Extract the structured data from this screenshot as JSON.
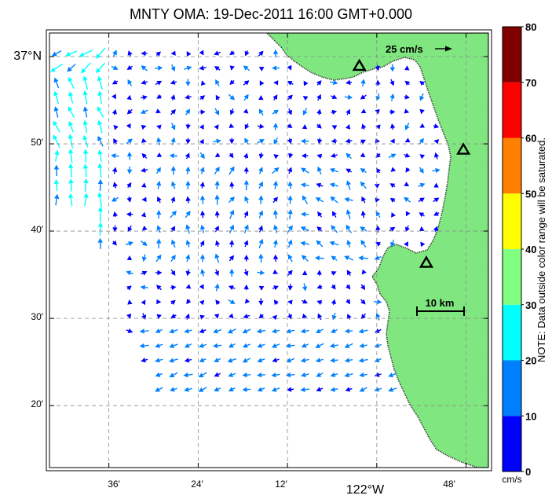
{
  "chart_data": {
    "type": "vector-field",
    "title": "MNTY OMA: 19-Dec-2011 16:00 GMT+0.000",
    "x_axis": {
      "ticks": [
        {
          "label": "36′",
          "lon": -122.6
        },
        {
          "label": "24′",
          "lon": -122.4
        },
        {
          "label": "12′",
          "lon": -122.2
        },
        {
          "label": "122°W",
          "lon": -122.0,
          "major": true
        },
        {
          "label": "48′",
          "lon": -121.8
        }
      ],
      "range_lon": [
        -122.733,
        -121.75
      ]
    },
    "y_axis": {
      "ticks": [
        {
          "label": "37°N",
          "lat": 37.0,
          "major": true
        },
        {
          "label": "50′",
          "lat": 36.8333
        },
        {
          "label": "40′",
          "lat": 36.6667
        },
        {
          "label": "30′",
          "lat": 36.5
        },
        {
          "label": "20′",
          "lat": 36.3333
        }
      ],
      "range_lat": [
        36.215,
        37.045
      ]
    },
    "grid": true,
    "colorbar": {
      "unit": "cm/s",
      "ticks": [
        "0",
        "10",
        "20",
        "30",
        "40",
        "50",
        "60",
        "70",
        "80"
      ],
      "bins": [
        {
          "from": 0,
          "to": 10,
          "color": "#0000ff"
        },
        {
          "from": 10,
          "to": 20,
          "color": "#0080ff"
        },
        {
          "from": 20,
          "to": 30,
          "color": "#00ffff"
        },
        {
          "from": 30,
          "to": 40,
          "color": "#80ff80"
        },
        {
          "from": 40,
          "to": 50,
          "color": "#ffff00"
        },
        {
          "from": 50,
          "to": 60,
          "color": "#ff8000"
        },
        {
          "from": 60,
          "to": 70,
          "color": "#ff0000"
        },
        {
          "from": 70,
          "to": 80,
          "color": "#800000"
        }
      ],
      "note": "NOTE: Data outside color range will be saturated."
    },
    "reference_vector": {
      "label": "25 cm/s",
      "speed_cm_s": 25
    },
    "scale_bar": {
      "label": "10 km",
      "km": 10
    },
    "land_color": "#80e680",
    "site_markers": [
      {
        "lon": -122.039,
        "lat": 36.982
      },
      {
        "lon": -121.806,
        "lat": 36.822
      },
      {
        "lon": -121.889,
        "lat": 36.606
      }
    ],
    "field_regions": [
      {
        "name": "north-west jet",
        "lon": [
          -122.7,
          -122.6
        ],
        "lat": [
          36.73,
          36.99
        ],
        "speed_cm_s": [
          18,
          28
        ],
        "dir_deg": 110,
        "note": "cyan vectors, strong southward/north-westward flow"
      },
      {
        "name": "bay interior",
        "lon": [
          -122.45,
          -121.95
        ],
        "lat": [
          36.6,
          36.92
        ],
        "speed_cm_s": [
          4,
          16
        ],
        "dir_deg": "variable"
      },
      {
        "name": "southern band",
        "lon": [
          -122.4,
          -121.95
        ],
        "lat": [
          36.37,
          36.45
        ],
        "speed_cm_s": [
          10,
          16
        ],
        "dir_deg": 195
      }
    ]
  }
}
